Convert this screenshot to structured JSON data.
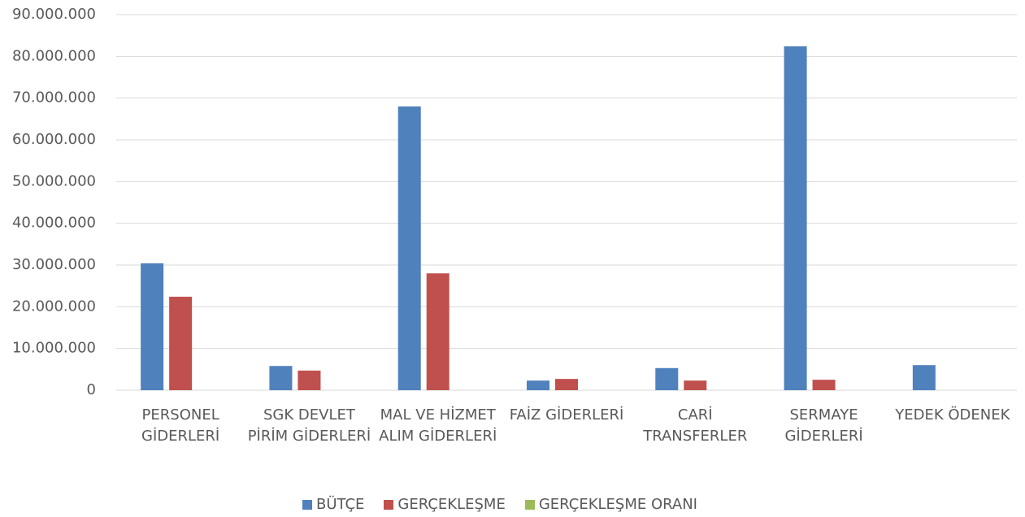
{
  "chart_data": {
    "type": "bar",
    "categories": [
      "PERSONEL GİDERLERİ",
      "SGK DEVLET PİRİM GİDERLERİ",
      "MAL VE HİZMET ALIM GİDERLERİ",
      "FAİZ GİDERLERİ",
      "CARİ TRANSFERLER",
      "SERMAYE GİDERLERİ",
      "YEDEK ÖDENEK"
    ],
    "series": [
      {
        "name": "BÜTÇE",
        "color": "#4f81bd",
        "values": [
          30400000,
          5800000,
          68000000,
          2300000,
          5300000,
          82400000,
          6000000
        ]
      },
      {
        "name": "GERÇEKLEŞME",
        "color": "#c0504d",
        "values": [
          22400000,
          4700000,
          28000000,
          2700000,
          2300000,
          2500000,
          0
        ]
      },
      {
        "name": "GERÇEKLEŞME ORANI",
        "color": "#9bbb59",
        "values": [
          0,
          0,
          0,
          0,
          0,
          0,
          0
        ]
      }
    ],
    "ylim": [
      0,
      90000000
    ],
    "yticks": [
      0,
      {
        "value": 10000000,
        "label": "10.000.000"
      },
      {
        "value": 20000000,
        "label": "20.000.000"
      },
      {
        "value": 30000000,
        "label": "30.000.000"
      },
      {
        "value": 40000000,
        "label": "40.000.000"
      },
      {
        "value": 50000000,
        "label": "50.000.000"
      },
      {
        "value": 60000000,
        "label": "60.000.000"
      },
      {
        "value": 70000000,
        "label": "70.000.000"
      },
      {
        "value": 80000000,
        "label": "80.000.000"
      },
      {
        "value": 90000000,
        "label": "90.000.000"
      }
    ],
    "grid": true,
    "legend": "bottom"
  }
}
